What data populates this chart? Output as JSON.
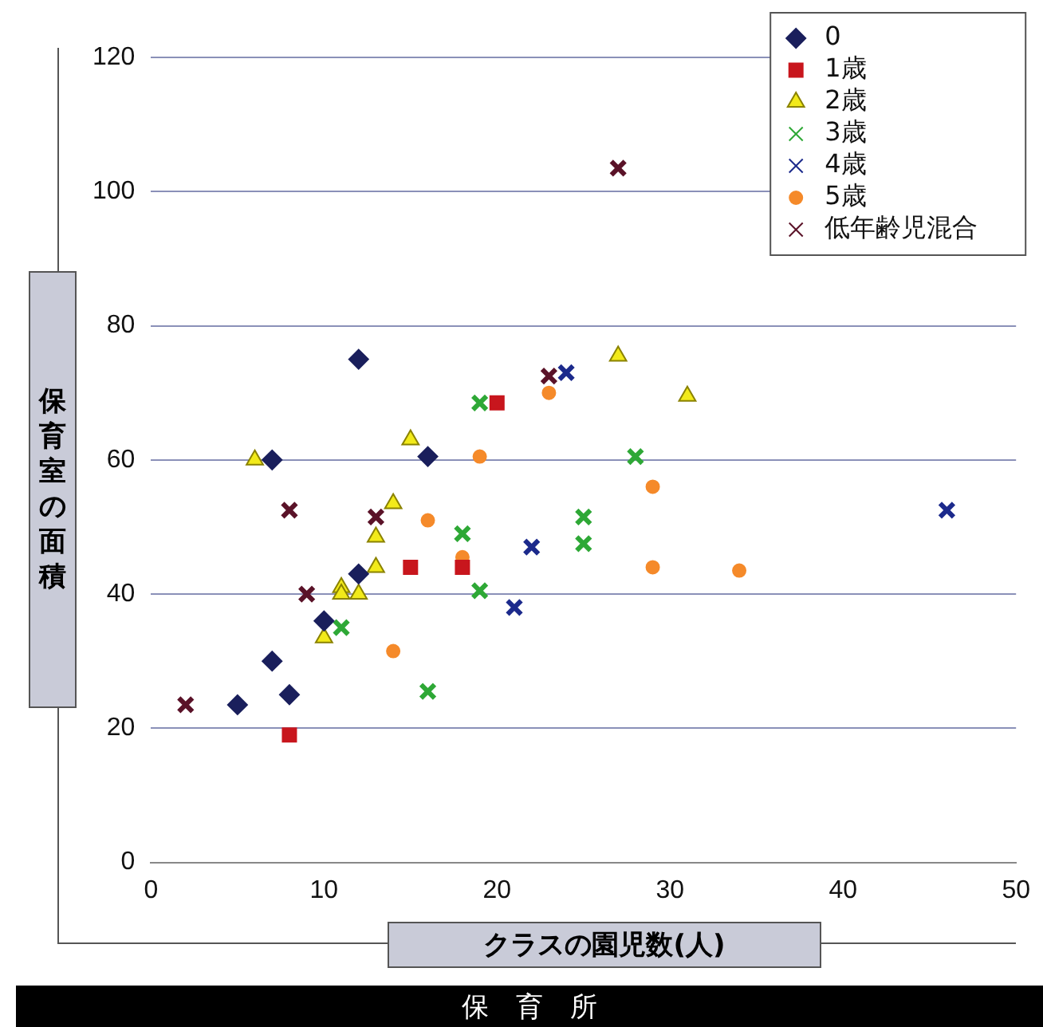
{
  "chart_data": {
    "type": "scatter",
    "xlabel": "クラスの園児数(人)",
    "ylabel": "保育室の面積",
    "annotations": [
      "保　育　所"
    ],
    "xlim": [
      0,
      50
    ],
    "xticks": [
      0,
      10,
      20,
      30,
      40,
      50
    ],
    "ylim": [
      0,
      120
    ],
    "yticks": [
      0,
      20,
      40,
      60,
      80,
      100,
      120
    ],
    "grid": "y",
    "legend": "top right",
    "series": [
      {
        "name": "0",
        "color": "#1a1f5c",
        "marker": "diamond",
        "x": [
          5,
          7,
          7,
          8,
          10,
          12,
          12,
          16
        ],
        "values": [
          23.5,
          30,
          60,
          25,
          36,
          43,
          75,
          60.5
        ]
      },
      {
        "name": "1歳",
        "color": "#c8161d",
        "marker": "square",
        "x": [
          8,
          15,
          18,
          20
        ],
        "values": [
          19,
          44,
          44,
          68.5
        ]
      },
      {
        "name": "2歳",
        "color": "#f2ea1a",
        "marker": "triangle",
        "x": [
          6,
          10,
          11,
          11,
          12,
          13,
          13,
          14,
          15,
          27,
          31
        ],
        "values": [
          60,
          33.5,
          41,
          40,
          40,
          48.5,
          44,
          53.5,
          63,
          75.5,
          69.5
        ]
      },
      {
        "name": "3歳",
        "color": "#2ea836",
        "marker": "cross",
        "x": [
          11,
          16,
          18,
          19,
          19,
          25,
          25,
          28
        ],
        "values": [
          35,
          25.5,
          49,
          68.5,
          40.5,
          51.5,
          47.5,
          60.5
        ]
      },
      {
        "name": "4歳",
        "color": "#1c2a8c",
        "marker": "cross",
        "x": [
          21,
          22,
          24,
          46
        ],
        "values": [
          38,
          47,
          73,
          52.5
        ]
      },
      {
        "name": "5歳",
        "color": "#f58a2a",
        "marker": "circle",
        "x": [
          14,
          16,
          18,
          19,
          23,
          29,
          29,
          34
        ],
        "values": [
          31.5,
          51,
          45.5,
          60.5,
          70,
          56,
          44,
          43.5
        ]
      },
      {
        "name": "低年齢児混合",
        "color": "#5a1228",
        "marker": "cross",
        "x": [
          2,
          8,
          9,
          13,
          23,
          27
        ],
        "values": [
          23.5,
          52.5,
          40,
          51.5,
          72.5,
          103.5
        ]
      }
    ]
  }
}
